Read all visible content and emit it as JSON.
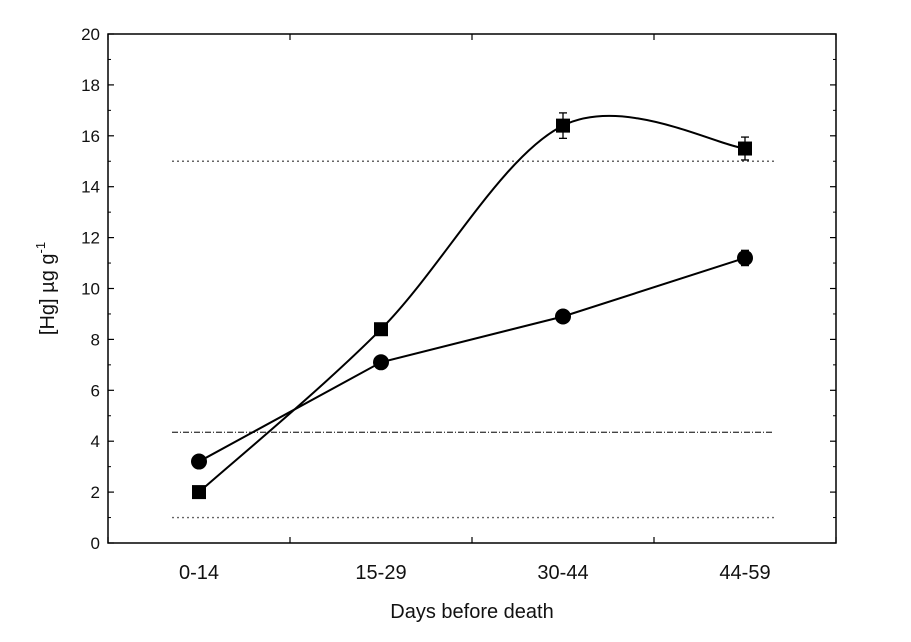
{
  "chart_data": {
    "type": "line",
    "xlabel": "Days before death",
    "ylabel": "[Hg] µg g",
    "ylabel_superscript": "-1",
    "categories": [
      "0-14",
      "15-29",
      "30-44",
      "44-59"
    ],
    "ylim": [
      0,
      20
    ],
    "yticks": [
      0,
      2,
      4,
      6,
      8,
      10,
      12,
      14,
      16,
      18,
      20
    ],
    "grid": false,
    "series": [
      {
        "marker": "square",
        "values": [
          2.0,
          8.4,
          16.4,
          15.5
        ],
        "errors": [
          0.1,
          0.1,
          0.5,
          0.45
        ],
        "smooth": true,
        "color": "#000000"
      },
      {
        "marker": "circle",
        "values": [
          3.2,
          7.1,
          8.9,
          11.2
        ],
        "errors": [
          0.1,
          0.1,
          0.1,
          0.3
        ],
        "smooth": false,
        "color": "#000000"
      }
    ],
    "reference_lines": [
      {
        "y": 15.0,
        "style": "dotted",
        "color": "#666666"
      },
      {
        "y": 4.35,
        "style": "dash-dot",
        "color": "#444444"
      },
      {
        "y": 1.0,
        "style": "dotted",
        "color": "#666666"
      }
    ]
  }
}
